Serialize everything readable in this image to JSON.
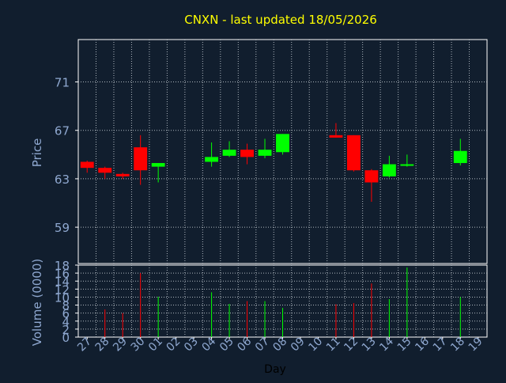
{
  "chart_data": {
    "type": "candlestick",
    "title": "CNXN - last updated 18/05/2026",
    "price_axis_label": "Price",
    "volume_axis_label": "Volume (0000)",
    "xlabel": "Day",
    "grid": true,
    "colors": {
      "background": "#111e2e",
      "plot_border": "#ffffff",
      "grid": "#b0b8c0",
      "title": "#ffff00",
      "axis_text": "#8fa8d0",
      "xlabel_text": "#000000",
      "up": "#00ff00",
      "down": "#ff0000"
    },
    "categories": [
      "27",
      "28",
      "29",
      "30",
      "01",
      "02",
      "03",
      "04",
      "05",
      "06",
      "07",
      "08",
      "09",
      "10",
      "11",
      "12",
      "13",
      "14",
      "15",
      "16",
      "17",
      "18",
      "19"
    ],
    "price_ylim": [
      56.0,
      74.5
    ],
    "price_ticks": [
      "59",
      "63",
      "67",
      "71"
    ],
    "volume_ylim": [
      0,
      18
    ],
    "volume_ticks": [
      "0",
      "2",
      "4",
      "6",
      "8",
      "10",
      "12",
      "14",
      "16",
      "18"
    ],
    "candles": [
      {
        "day": "27",
        "open": 64.4,
        "high": 64.5,
        "low": 63.5,
        "close": 63.9
      },
      {
        "day": "28",
        "open": 63.9,
        "high": 64.0,
        "low": 63.0,
        "close": 63.5
      },
      {
        "day": "29",
        "open": 63.4,
        "high": 63.5,
        "low": 63.0,
        "close": 63.2
      },
      {
        "day": "30",
        "open": 65.6,
        "high": 66.6,
        "low": 62.5,
        "close": 63.7
      },
      {
        "day": "01",
        "open": 64.0,
        "high": 64.3,
        "low": 62.7,
        "close": 64.3
      },
      {
        "day": "04",
        "open": 64.4,
        "high": 66.0,
        "low": 64.0,
        "close": 64.8
      },
      {
        "day": "05",
        "open": 64.9,
        "high": 66.1,
        "low": 64.8,
        "close": 65.4
      },
      {
        "day": "06",
        "open": 65.4,
        "high": 65.9,
        "low": 64.2,
        "close": 64.8
      },
      {
        "day": "07",
        "open": 64.9,
        "high": 66.3,
        "low": 64.7,
        "close": 65.4
      },
      {
        "day": "08",
        "open": 65.2,
        "high": 66.7,
        "low": 65.0,
        "close": 66.7
      },
      {
        "day": "11",
        "open": 66.6,
        "high": 67.6,
        "low": 66.4,
        "close": 66.4
      },
      {
        "day": "12",
        "open": 66.6,
        "high": 66.6,
        "low": 63.6,
        "close": 63.7
      },
      {
        "day": "13",
        "open": 63.7,
        "high": 63.8,
        "low": 61.1,
        "close": 62.7
      },
      {
        "day": "14",
        "open": 63.2,
        "high": 64.9,
        "low": 63.1,
        "close": 64.2
      },
      {
        "day": "15",
        "open": 64.1,
        "high": 65.0,
        "low": 64.0,
        "close": 64.2
      },
      {
        "day": "18",
        "open": 64.3,
        "high": 66.3,
        "low": 64.1,
        "close": 65.3
      }
    ],
    "volumes": [
      {
        "day": "28",
        "value": 6.9,
        "dir": "down"
      },
      {
        "day": "29",
        "value": 6.0,
        "dir": "down"
      },
      {
        "day": "30",
        "value": 16.0,
        "dir": "down"
      },
      {
        "day": "01",
        "value": 10.1,
        "dir": "up"
      },
      {
        "day": "04",
        "value": 11.2,
        "dir": "up"
      },
      {
        "day": "05",
        "value": 8.3,
        "dir": "up"
      },
      {
        "day": "06",
        "value": 9.0,
        "dir": "down"
      },
      {
        "day": "07",
        "value": 9.0,
        "dir": "up"
      },
      {
        "day": "08",
        "value": 7.3,
        "dir": "up"
      },
      {
        "day": "11",
        "value": 8.2,
        "dir": "down"
      },
      {
        "day": "12",
        "value": 8.5,
        "dir": "down"
      },
      {
        "day": "13",
        "value": 13.4,
        "dir": "down"
      },
      {
        "day": "14",
        "value": 9.5,
        "dir": "up"
      },
      {
        "day": "15",
        "value": 17.4,
        "dir": "up"
      },
      {
        "day": "18",
        "value": 10.0,
        "dir": "up"
      }
    ]
  }
}
